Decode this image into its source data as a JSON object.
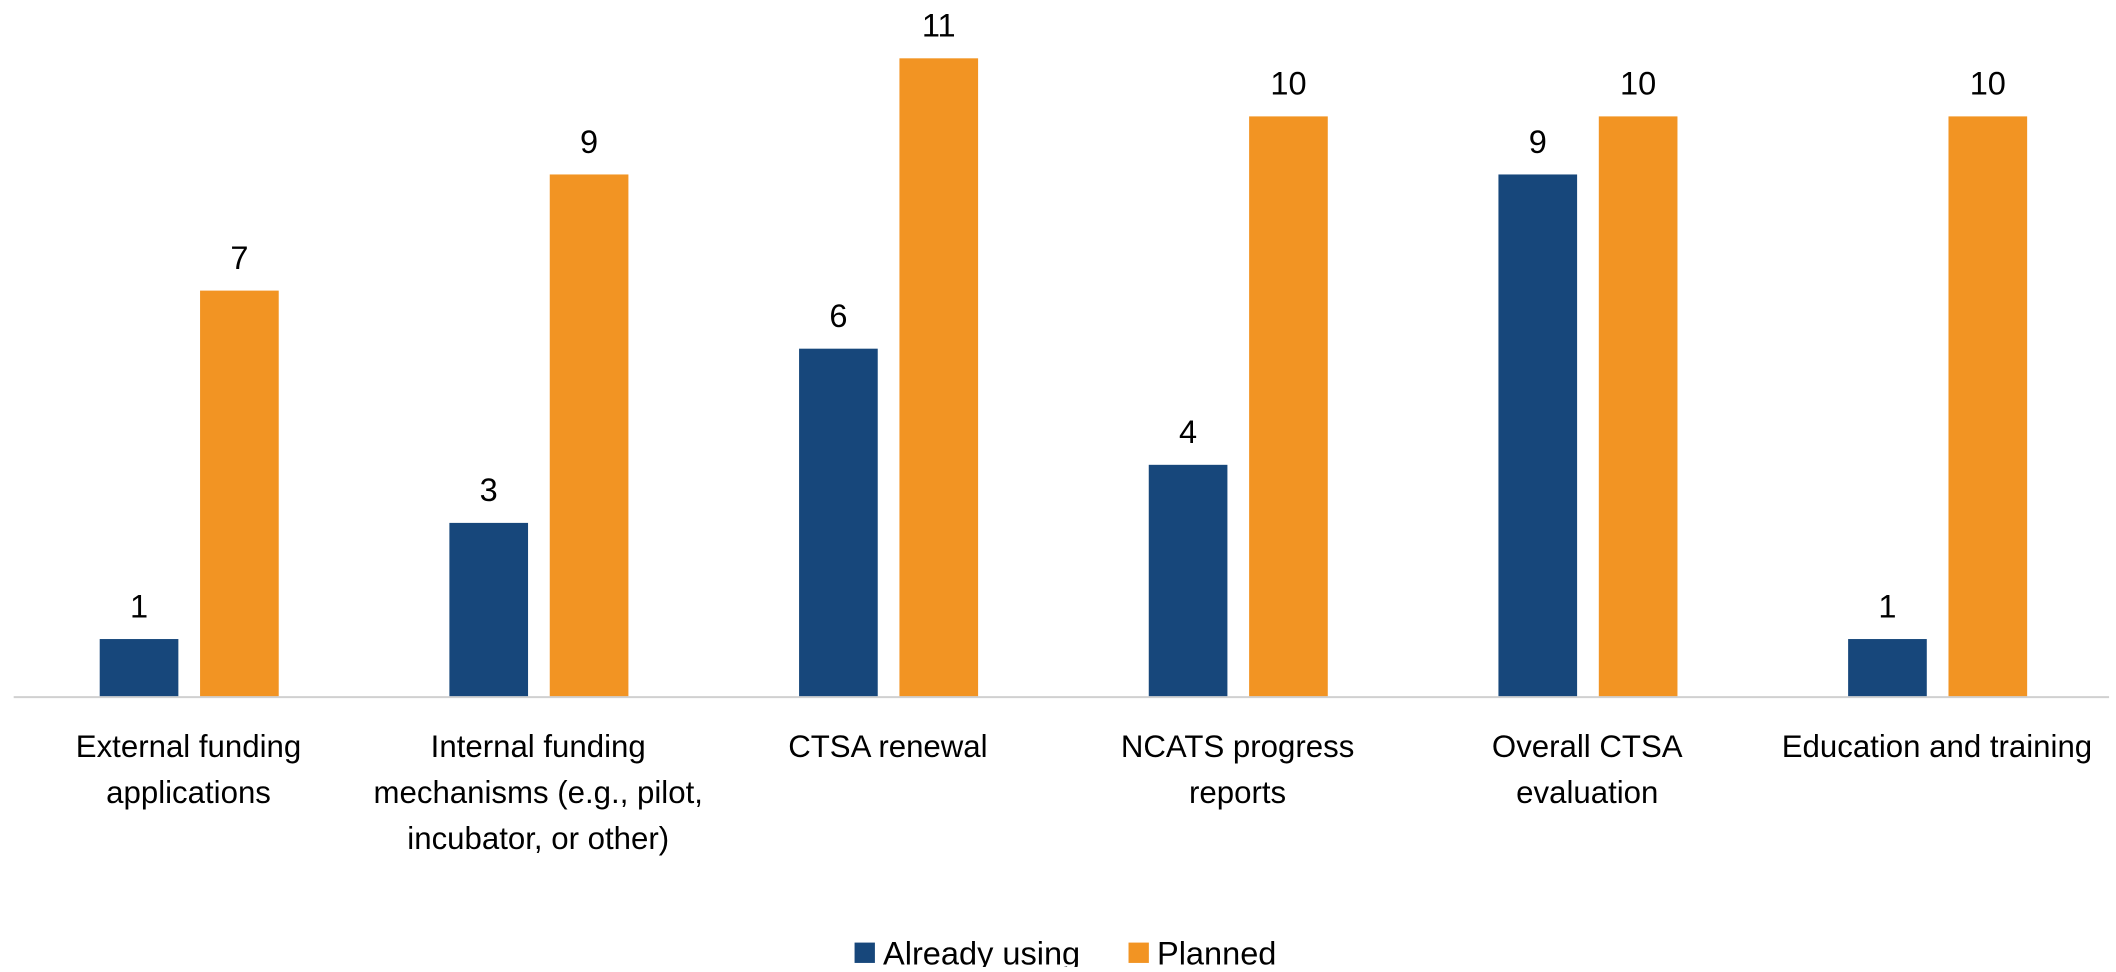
{
  "chart_data": {
    "type": "bar",
    "categories": [
      "External funding applications",
      "Internal funding mechanisms (e.g., pilot, incubator, or other)",
      "CTSA renewal",
      "NCATS progress reports",
      "Overall CTSA evaluation",
      "Education and training"
    ],
    "series": [
      {
        "name": "Already using",
        "color": "#17477b",
        "values": [
          1,
          3,
          6,
          4,
          9,
          1
        ]
      },
      {
        "name": "Planned",
        "color": "#f29423",
        "values": [
          7,
          9,
          11,
          10,
          10,
          10
        ]
      }
    ],
    "ylim": [
      0,
      11
    ],
    "legend": "bottom"
  }
}
